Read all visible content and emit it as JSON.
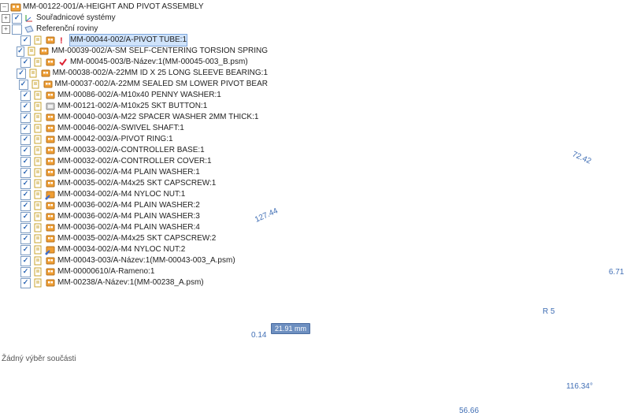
{
  "status_text": "Žádný výběr součásti",
  "tree": {
    "root": {
      "icon": "asm-orange-root",
      "label": "MM-00122-001/A-HEIGHT AND PIVOT ASSEMBLY"
    },
    "groups": [
      {
        "icon": "coord-sys",
        "label": "Souřadnicové systémy",
        "checkbox": true,
        "checked": true,
        "plus": "plus"
      },
      {
        "icon": "ref-plane",
        "label": "Referenční roviny",
        "checkbox": true,
        "checked": false,
        "plus": "plus"
      }
    ],
    "items": [
      {
        "icon": "asm-orange",
        "extra": "red-excl",
        "label": "MM-00044-002/A-PIVOT TUBE:1",
        "hl": true
      },
      {
        "icon": "asm-orange",
        "label": "MM-00039-002/A-SM SELF-CENTERING TORSION SPRING"
      },
      {
        "icon": "asm-orange",
        "extra": "red-check",
        "label": "MM-00045-003/B-Název:1(MM-00045-003_B.psm)"
      },
      {
        "icon": "asm-orange",
        "label": "MM-00038-002/A-22MM ID X 25 LONG SLEEVE BEARING:1"
      },
      {
        "icon": "asm-orange",
        "label": "MM-00037-002/A-22MM SEALED SM LOWER PIVOT BEAR"
      },
      {
        "icon": "asm-orange",
        "label": "MM-00086-002/A-M10x40 PENNY WASHER:1"
      },
      {
        "icon": "part-gray",
        "label": "MM-00121-002/A-M10x25 SKT BUTTON:1"
      },
      {
        "icon": "asm-orange",
        "label": "MM-00040-003/A-M22 SPACER WASHER 2MM THICK:1"
      },
      {
        "icon": "asm-orange",
        "label": "MM-00046-002/A-SWIVEL SHAFT:1"
      },
      {
        "icon": "asm-orange",
        "label": "MM-00042-003/A-PIVOT RING:1"
      },
      {
        "icon": "asm-orange",
        "label": "MM-00033-002/A-CONTROLLER BASE:1"
      },
      {
        "icon": "asm-orange",
        "label": "MM-00032-002/A-CONTROLLER COVER:1"
      },
      {
        "icon": "asm-orange",
        "label": "MM-00036-002/A-M4 PLAIN WASHER:1"
      },
      {
        "icon": "asm-orange",
        "label": "MM-00035-002/A-M4x25 SKT CAPSCREW:1"
      },
      {
        "icon": "asm-link",
        "label": "MM-00034-002/A-M4 NYLOC NUT:1"
      },
      {
        "icon": "asm-orange",
        "label": "MM-00036-002/A-M4 PLAIN WASHER:2"
      },
      {
        "icon": "asm-orange",
        "label": "MM-00036-002/A-M4 PLAIN WASHER:3"
      },
      {
        "icon": "asm-orange",
        "label": "MM-00036-002/A-M4 PLAIN WASHER:4"
      },
      {
        "icon": "asm-orange",
        "label": "MM-00035-002/A-M4x25 SKT CAPSCREW:2"
      },
      {
        "icon": "asm-link",
        "label": "MM-00034-002/A-M4 NYLOC NUT:2"
      },
      {
        "icon": "asm-orange",
        "label": "MM-00043-003/A-Název:1(MM-00043-003_A.psm)"
      },
      {
        "icon": "asm-orange",
        "label": "MM-00000610/A-Rameno:1"
      },
      {
        "icon": "asm-orange",
        "label": "MM-00238/A-Název:1(MM-00238_A.psm)"
      }
    ]
  },
  "dimensions": {
    "d1": "127.44",
    "d2": "72.42",
    "d3": "R 5",
    "d4": "6.71",
    "d5": "0.14",
    "d6": "56.66",
    "d7": "116.34°",
    "box": "21.91 mm"
  },
  "colors": {
    "dim": "#4a73b8",
    "body_dark": "#4a4c4f",
    "body_mid": "#6b6d71",
    "body_light": "#9a9da2",
    "clip": "#9ec8ef",
    "clip_edge": "#5d99d4",
    "edge": "#2c2d30"
  }
}
